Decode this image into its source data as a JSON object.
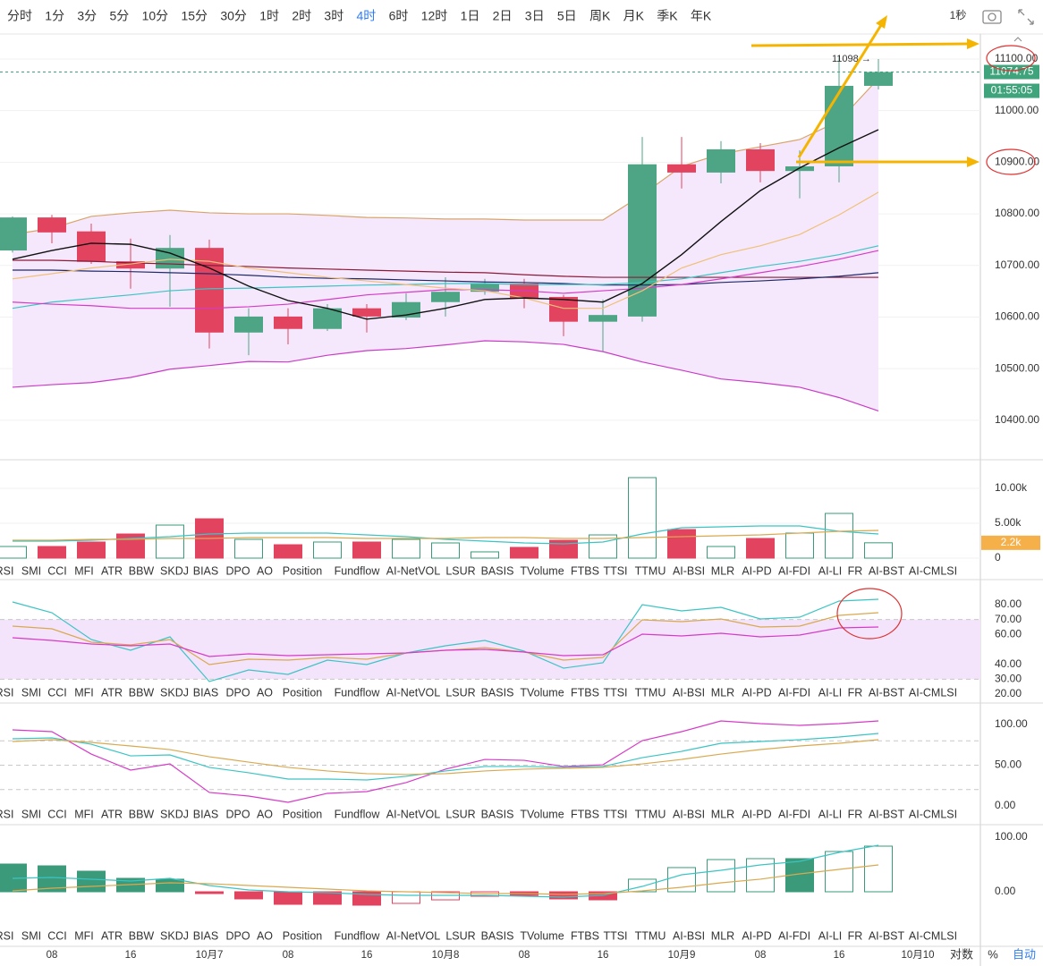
{
  "toolbar": {
    "intervals": [
      "分时",
      "1分",
      "3分",
      "5分",
      "10分",
      "15分",
      "30分",
      "1时",
      "2时",
      "3时",
      "4时",
      "6时",
      "12时",
      "1日",
      "2日",
      "3日",
      "5日",
      "周K",
      "月K",
      "季K",
      "年K"
    ],
    "active_index": 10,
    "active_color": "#2f7df6",
    "refresh": "1秒"
  },
  "tabs": [
    "RSI",
    "SMI",
    "CCI",
    "MFI",
    "ATR",
    "BBW",
    "SKDJ",
    "BIAS",
    "DPO",
    "AO",
    "Position",
    "Fundflow",
    "AI-NetVOL",
    "LSUR",
    "BASIS",
    "TVolume",
    "FTBS",
    "TTSI",
    "TTMU",
    "AI-BSI",
    "MLR",
    "AI-PD",
    "AI-FDI",
    "AI-LI",
    "FR",
    "AI-BST",
    "AI-CMLSI"
  ],
  "bottom_bar": {
    "log": "对数",
    "percent": "%",
    "auto": "自动",
    "auto_color": "#2f7df6"
  },
  "chart_data": [
    {
      "type": "candlestick",
      "grid": true,
      "categories": [
        null,
        "08",
        null,
        "16",
        null,
        "10月7",
        null,
        "08",
        null,
        "16",
        null,
        "10月8",
        null,
        "08",
        null,
        "16",
        null,
        "10月9",
        null,
        "08",
        null,
        "16",
        null,
        "10月10"
      ],
      "open": [
        10729,
        10793,
        10766,
        10708,
        10694,
        10734,
        10570,
        10601,
        10577,
        10617,
        10599,
        10629,
        10649,
        10665,
        10639,
        10591,
        10601,
        10896,
        10880,
        10925,
        10883,
        10892,
        11048,
        null
      ],
      "high": [
        10795,
        10798,
        10781,
        10752,
        10759,
        10750,
        10617,
        10617,
        10625,
        10625,
        10646,
        10677,
        10674,
        10674,
        10643,
        10634,
        10949,
        10949,
        10941,
        10937,
        10923,
        11107,
        11100,
        null
      ],
      "low": [
        10725,
        10743,
        10703,
        10655,
        10620,
        10539,
        10526,
        10547,
        10573,
        10570,
        10594,
        10601,
        10643,
        10617,
        10563,
        10533,
        10591,
        10849,
        10859,
        10861,
        10830,
        10861,
        11041,
        null
      ],
      "close": [
        10793,
        10764,
        10707,
        10694,
        10734,
        10570,
        10601,
        10577,
        10617,
        10601,
        10629,
        10649,
        10665,
        10637,
        10591,
        10604,
        10896,
        10880,
        10925,
        10883,
        10892,
        11048,
        11074.75,
        null
      ],
      "up_color": "#4ea585",
      "down_color": "#e2435f",
      "ylim": [
        10327,
        11145
      ],
      "yticks": [
        {
          "value": 10400,
          "label": "10400.00"
        },
        {
          "value": 10500,
          "label": "10500.00"
        },
        {
          "value": 10600,
          "label": "10600.00"
        },
        {
          "value": 10700,
          "label": "10700.00"
        },
        {
          "value": 10800,
          "label": "10800.00"
        },
        {
          "value": 10900,
          "label": "10900.00"
        },
        {
          "value": 11000,
          "label": "11000.00"
        },
        {
          "value": 11100,
          "label": "11100.00"
        }
      ],
      "band": {
        "fill": "#f5e8fc",
        "upper_color": "#d9a46a",
        "lower_color": "#c93bc8",
        "upper": [
          10760,
          10772,
          10795,
          10802,
          10807,
          10802,
          10800,
          10800,
          10797,
          10793,
          10792,
          10790,
          10790,
          10788,
          10788,
          10788,
          10837,
          10892,
          10916,
          10930,
          10944,
          10980,
          11062,
          null
        ],
        "lower": [
          10464,
          10469,
          10473,
          10483,
          10499,
          10506,
          10514,
          10513,
          10526,
          10535,
          10539,
          10546,
          10554,
          10552,
          10547,
          10533,
          10513,
          10497,
          10480,
          10473,
          10464,
          10444,
          10418,
          null
        ]
      },
      "series": [
        {
          "color": "#8b1a3a",
          "values": [
            10710,
            10710,
            10708,
            10705,
            10703,
            10700,
            10698,
            10695,
            10693,
            10691,
            10689,
            10687,
            10686,
            10682,
            10679,
            10677,
            10677,
            10677,
            10677,
            10677,
            10677,
            10677,
            10677,
            null
          ]
        },
        {
          "color": "#1f2a6b",
          "values": [
            10691,
            10691,
            10689,
            10688,
            10686,
            10684,
            10681,
            10677,
            10675,
            10674,
            10672,
            10670,
            10668,
            10667,
            10665,
            10662,
            10662,
            10663,
            10667,
            10670,
            10674,
            10679,
            10686,
            null
          ]
        },
        {
          "color": "#3cc4c4",
          "values": [
            10617,
            10629,
            10636,
            10643,
            10651,
            10655,
            10656,
            10658,
            10660,
            10662,
            10663,
            10665,
            10665,
            10663,
            10663,
            10663,
            10667,
            10674,
            10686,
            10698,
            10708,
            10721,
            10738,
            null
          ]
        },
        {
          "color": "#d63bc8",
          "values": [
            10629,
            10625,
            10622,
            10617,
            10617,
            10617,
            10620,
            10625,
            10634,
            10643,
            10648,
            10653,
            10653,
            10651,
            10646,
            10651,
            10656,
            10663,
            10674,
            10686,
            10698,
            10712,
            10729,
            null
          ]
        },
        {
          "color": "#f0c078",
          "values": [
            10674,
            10684,
            10695,
            10703,
            10712,
            10708,
            10695,
            10686,
            10677,
            10670,
            10663,
            10656,
            10651,
            10637,
            10617,
            10617,
            10651,
            10695,
            10721,
            10738,
            10760,
            10798,
            10842,
            null
          ]
        },
        {
          "color": "#111111",
          "values": [
            10712,
            10729,
            10743,
            10741,
            10724,
            10695,
            10660,
            10632,
            10617,
            10596,
            10604,
            10617,
            10634,
            10637,
            10634,
            10629,
            10665,
            10721,
            10785,
            10845,
            10889,
            10928,
            10963,
            null
          ]
        }
      ],
      "last_price": 11074.75,
      "countdown": "01:55:05",
      "tag_color": "#3fa37c",
      "high_marker": "11098 →"
    },
    {
      "type": "bar",
      "grid": true,
      "values": [
        1670,
        1670,
        2310,
        3460,
        4740,
        5640,
        2690,
        1920,
        2310,
        2310,
        2690,
        2180,
        900,
        1540,
        2560,
        3330,
        11540,
        4100,
        1670,
        2820,
        3590,
        6410,
        2200,
        null
      ],
      "bar_colors": [
        "#3a9a7a",
        "#e2435f",
        "#e2435f",
        "#e2435f",
        "#3a9a7a",
        "#e2435f",
        "#3a9a7a",
        "#e2435f",
        "#3a9a7a",
        "#e2435f",
        "#3a9a7a",
        "#3a9a7a",
        "#3a9a7a",
        "#e2435f",
        "#e2435f",
        "#3a9a7a",
        "#3a9a7a",
        "#e2435f",
        "#3a9a7a",
        "#e2435f",
        "#3a9a7a",
        "#3a9a7a",
        "#3a9a7a",
        null
      ],
      "hollow": [
        true,
        false,
        false,
        false,
        true,
        false,
        true,
        false,
        true,
        false,
        true,
        true,
        true,
        false,
        false,
        true,
        true,
        false,
        true,
        false,
        true,
        true,
        true,
        null
      ],
      "ylim": [
        -769,
        13974
      ],
      "yticks": [
        0,
        {
          "value": 5000,
          "label": "5.00k"
        },
        {
          "value": 10000,
          "label": "10.00k"
        }
      ],
      "series": [
        {
          "color": "#3cc4c4",
          "values": [
            2436,
            2436,
            2564,
            2821,
            3077,
            3462,
            3590,
            3590,
            3590,
            3333,
            3077,
            2692,
            2436,
            2179,
            2051,
            2308,
            3462,
            4359,
            4487,
            4615,
            4615,
            3846,
            3462,
            null
          ]
        },
        {
          "color": "#d9a950",
          "values": [
            2564,
            2564,
            2692,
            2692,
            2821,
            2821,
            2949,
            2949,
            2949,
            2821,
            2821,
            2821,
            2949,
            2949,
            2821,
            2821,
            2949,
            3077,
            3205,
            3333,
            3590,
            3846,
            3974,
            null
          ]
        }
      ],
      "last_value": 2200,
      "last_label": "2.2k",
      "tag_color": "#f5b04a"
    },
    {
      "type": "line",
      "grid": false,
      "ylim": [
        14.6,
        95.6
      ],
      "yticks": [
        {
          "value": 20,
          "label": "20.00"
        },
        {
          "value": 30,
          "label": "30.00"
        },
        {
          "value": 40,
          "label": "40.00"
        },
        {
          "value": 60,
          "label": "60.00"
        },
        {
          "value": 70,
          "label": "70.00"
        },
        {
          "value": 80,
          "label": "80.00"
        }
      ],
      "levels": [
        30,
        70
      ],
      "level_fill": "#f3e4fb",
      "series": [
        {
          "color": "#3cc4c4",
          "values": [
            81.8,
            74.6,
            56.6,
            49.4,
            58.4,
            28.4,
            36.2,
            33.2,
            42.8,
            39.8,
            47.6,
            52.4,
            56.0,
            48.8,
            37.4,
            41.0,
            80.0,
            75.8,
            78.2,
            70.4,
            71.6,
            82.4,
            83.6,
            null
          ]
        },
        {
          "color": "#d9a950",
          "values": [
            65.6,
            63.8,
            54.8,
            53.0,
            56.6,
            39.8,
            43.4,
            42.8,
            44.6,
            43.4,
            47.6,
            49.4,
            51.2,
            48.2,
            42.8,
            44.6,
            69.8,
            68.6,
            70.4,
            65.0,
            65.6,
            72.8,
            74.6,
            null
          ]
        },
        {
          "color": "#d63bc8",
          "values": [
            57.8,
            56.0,
            53.6,
            52.4,
            53.6,
            45.2,
            47.0,
            45.8,
            46.4,
            47.0,
            47.6,
            49.4,
            50.0,
            48.2,
            45.8,
            46.4,
            60.2,
            59.0,
            60.8,
            58.4,
            59.6,
            64.4,
            65.0,
            null
          ]
        }
      ]
    },
    {
      "type": "line",
      "grid": false,
      "ylim": [
        -23.1,
        125.3
      ],
      "yticks": [
        {
          "value": 0,
          "label": "0.00"
        },
        {
          "value": 50,
          "label": "50.00"
        },
        {
          "value": 100,
          "label": "100.00"
        }
      ],
      "levels": [
        20,
        50,
        80
      ],
      "series": [
        {
          "color": "#d63bc8",
          "values": [
            93.4,
            91.2,
            63.7,
            44.0,
            51.6,
            16.5,
            12.1,
            4.4,
            15.4,
            17.6,
            28.6,
            45.1,
            57.1,
            56.0,
            48.4,
            50.5,
            80.2,
            91.2,
            104.4,
            101.1,
            98.9,
            101.1,
            104.4,
            null
          ]
        },
        {
          "color": "#3cc4c4",
          "values": [
            82.4,
            83.5,
            75.8,
            61.5,
            62.6,
            47.3,
            40.7,
            33.0,
            33.0,
            31.9,
            36.3,
            42.9,
            48.4,
            48.4,
            47.3,
            48.4,
            59.3,
            67.0,
            76.9,
            79.1,
            81.3,
            84.6,
            89.0,
            null
          ]
        },
        {
          "color": "#d9a950",
          "values": [
            79.1,
            81.3,
            78.0,
            73.6,
            69.2,
            60.4,
            53.8,
            47.3,
            42.9,
            39.6,
            38.5,
            39.6,
            42.9,
            45.1,
            46.2,
            47.3,
            51.6,
            57.1,
            63.7,
            69.2,
            73.6,
            76.9,
            81.3,
            null
          ]
        }
      ]
    },
    {
      "type": "bar",
      "grid": false,
      "values": [
        50.8,
        47.5,
        37.7,
        24.6,
        23.0,
        -3.3,
        -13.1,
        -23.0,
        -23.0,
        -24.6,
        -21.3,
        -14.8,
        -8.2,
        -6.6,
        -13.1,
        -14.8,
        23.0,
        44.3,
        59.0,
        60.7,
        60.7,
        73.8,
        83.6,
        null
      ],
      "bar_colors": [
        "#3a9a7a",
        "#3a9a7a",
        "#3a9a7a",
        "#3a9a7a",
        "#3a9a7a",
        "#e2435f",
        "#e2435f",
        "#e2435f",
        "#e2435f",
        "#e2435f",
        "#e2435f",
        "#e2435f",
        "#e2435f",
        "#e2435f",
        "#e2435f",
        "#e2435f",
        "#3a9a7a",
        "#3a9a7a",
        "#3a9a7a",
        "#3a9a7a",
        "#3a9a7a",
        "#3a9a7a",
        "#3a9a7a",
        null
      ],
      "hollow": [
        false,
        false,
        false,
        false,
        false,
        false,
        false,
        false,
        false,
        false,
        true,
        true,
        true,
        false,
        false,
        false,
        true,
        true,
        true,
        true,
        false,
        true,
        true,
        null
      ],
      "ylim": [
        -100,
        121.3
      ],
      "yticks": [
        {
          "value": 0,
          "label": "0.00"
        },
        {
          "value": 100,
          "label": "100.00"
        }
      ],
      "series": [
        {
          "color": "#3cc4c4",
          "values": [
            24.6,
            26.2,
            23.0,
            19.7,
            24.6,
            11.5,
            3.3,
            0,
            -1.6,
            -4.9,
            -6.6,
            -6.6,
            -6.6,
            -8.2,
            -9.8,
            -6.6,
            9.8,
            31.1,
            39.3,
            49.2,
            55.7,
            72.1,
            85.2,
            null
          ]
        },
        {
          "color": "#d9a950",
          "values": [
            1.6,
            6.6,
            9.8,
            13.1,
            16.4,
            14.8,
            11.5,
            8.2,
            4.9,
            1.6,
            0,
            -1.6,
            -3.3,
            -3.3,
            -4.9,
            -3.3,
            1.6,
            8.2,
            16.4,
            23.0,
            32.8,
            41.0,
            49.2,
            null
          ]
        }
      ]
    }
  ]
}
